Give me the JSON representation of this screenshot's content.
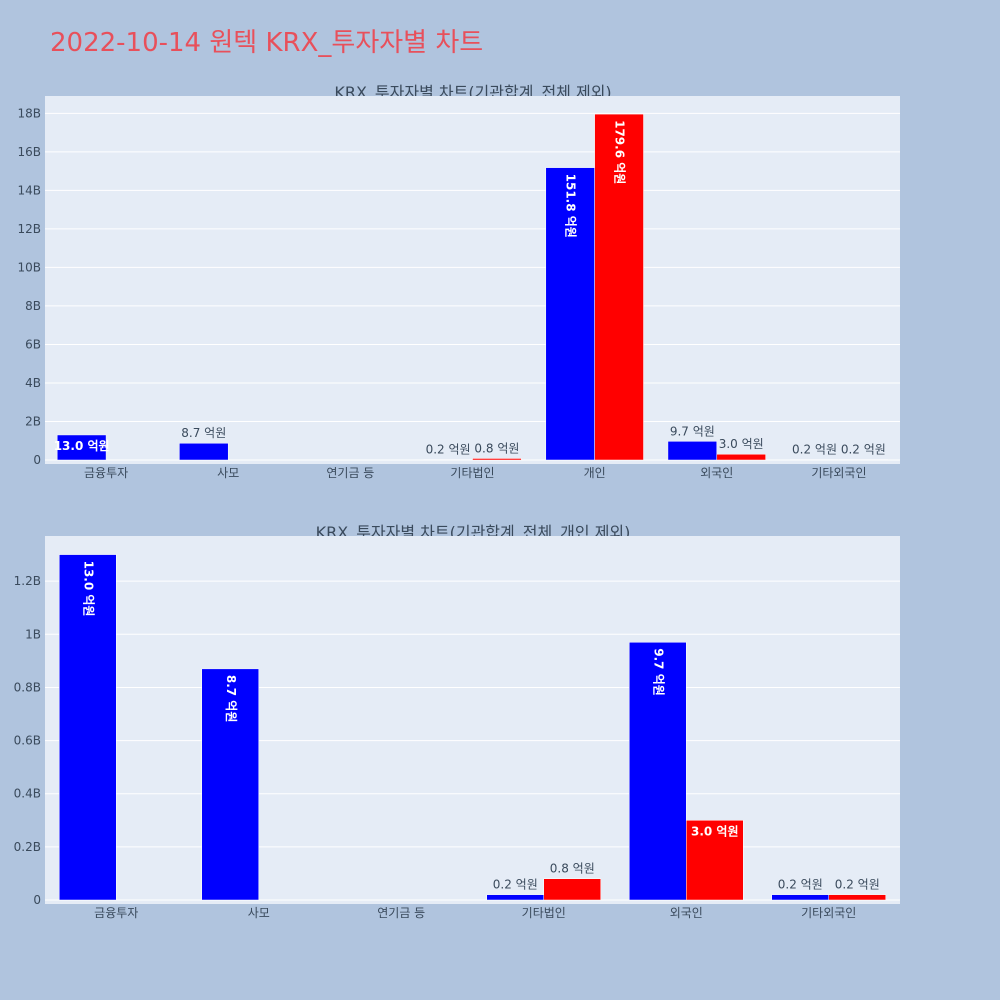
{
  "page": {
    "title": "2022-10-14 원텍 KRX_투자자별 차트"
  },
  "colors": {
    "buy": "#0000ff",
    "sell": "#ff0000",
    "plot_bg": "#e5ecf6",
    "page_bg": "#b0c4de",
    "title": "#e8505b"
  },
  "chart_data": [
    {
      "type": "bar",
      "title": "KRX_투자자별 차트(기관합계_전체 제외)",
      "categories": [
        "금융투자",
        "사모",
        "연기금 등",
        "기타법인",
        "개인",
        "외국인",
        "기타외국인"
      ],
      "series": [
        {
          "values": [
            1300000000,
            870000000,
            0,
            20000000,
            15180000000,
            970000000,
            20000000
          ],
          "labels": [
            "13.0 억원",
            "8.7 억원",
            "",
            "0.2 억원",
            "151.8 억원",
            "9.7 억원",
            "0.2 억원"
          ]
        },
        {
          "values": [
            0,
            0,
            0,
            80000000,
            17960000000,
            300000000,
            20000000
          ],
          "labels": [
            "",
            "",
            "",
            "0.8 억원",
            "179.6 억원",
            "3.0 억원",
            "0.2 억원"
          ]
        }
      ],
      "yticks": [
        0,
        2000000000,
        4000000000,
        6000000000,
        8000000000,
        10000000000,
        12000000000,
        14000000000,
        16000000000,
        18000000000
      ],
      "ytick_labels": [
        "0",
        "2B",
        "4B",
        "6B",
        "8B",
        "10B",
        "12B",
        "14B",
        "16B",
        "18B"
      ],
      "ylim": [
        0,
        18900000000
      ],
      "grid": true,
      "legend": "none"
    },
    {
      "type": "bar",
      "title": "KRX_투자자별 차트(기관합계_전체_개인 제외)",
      "categories": [
        "금융투자",
        "사모",
        "연기금 등",
        "기타법인",
        "외국인",
        "기타외국인"
      ],
      "series": [
        {
          "values": [
            1300000000,
            870000000,
            0,
            20000000,
            970000000,
            20000000
          ],
          "labels": [
            "13.0 억원",
            "8.7 억원",
            "",
            "0.2 억원",
            "9.7 억원",
            "0.2 억원"
          ]
        },
        {
          "values": [
            0,
            0,
            0,
            80000000,
            300000000,
            20000000
          ],
          "labels": [
            "",
            "",
            "",
            "0.8 억원",
            "3.0 억원",
            "0.2 억원"
          ]
        }
      ],
      "yticks": [
        0,
        200000000,
        400000000,
        600000000,
        800000000,
        1000000000,
        1200000000
      ],
      "ytick_labels": [
        "0",
        "0.2B",
        "0.4B",
        "0.6B",
        "0.8B",
        "1B",
        "1.2B"
      ],
      "ylim": [
        0,
        1370000000
      ],
      "grid": true,
      "legend": "none"
    }
  ]
}
